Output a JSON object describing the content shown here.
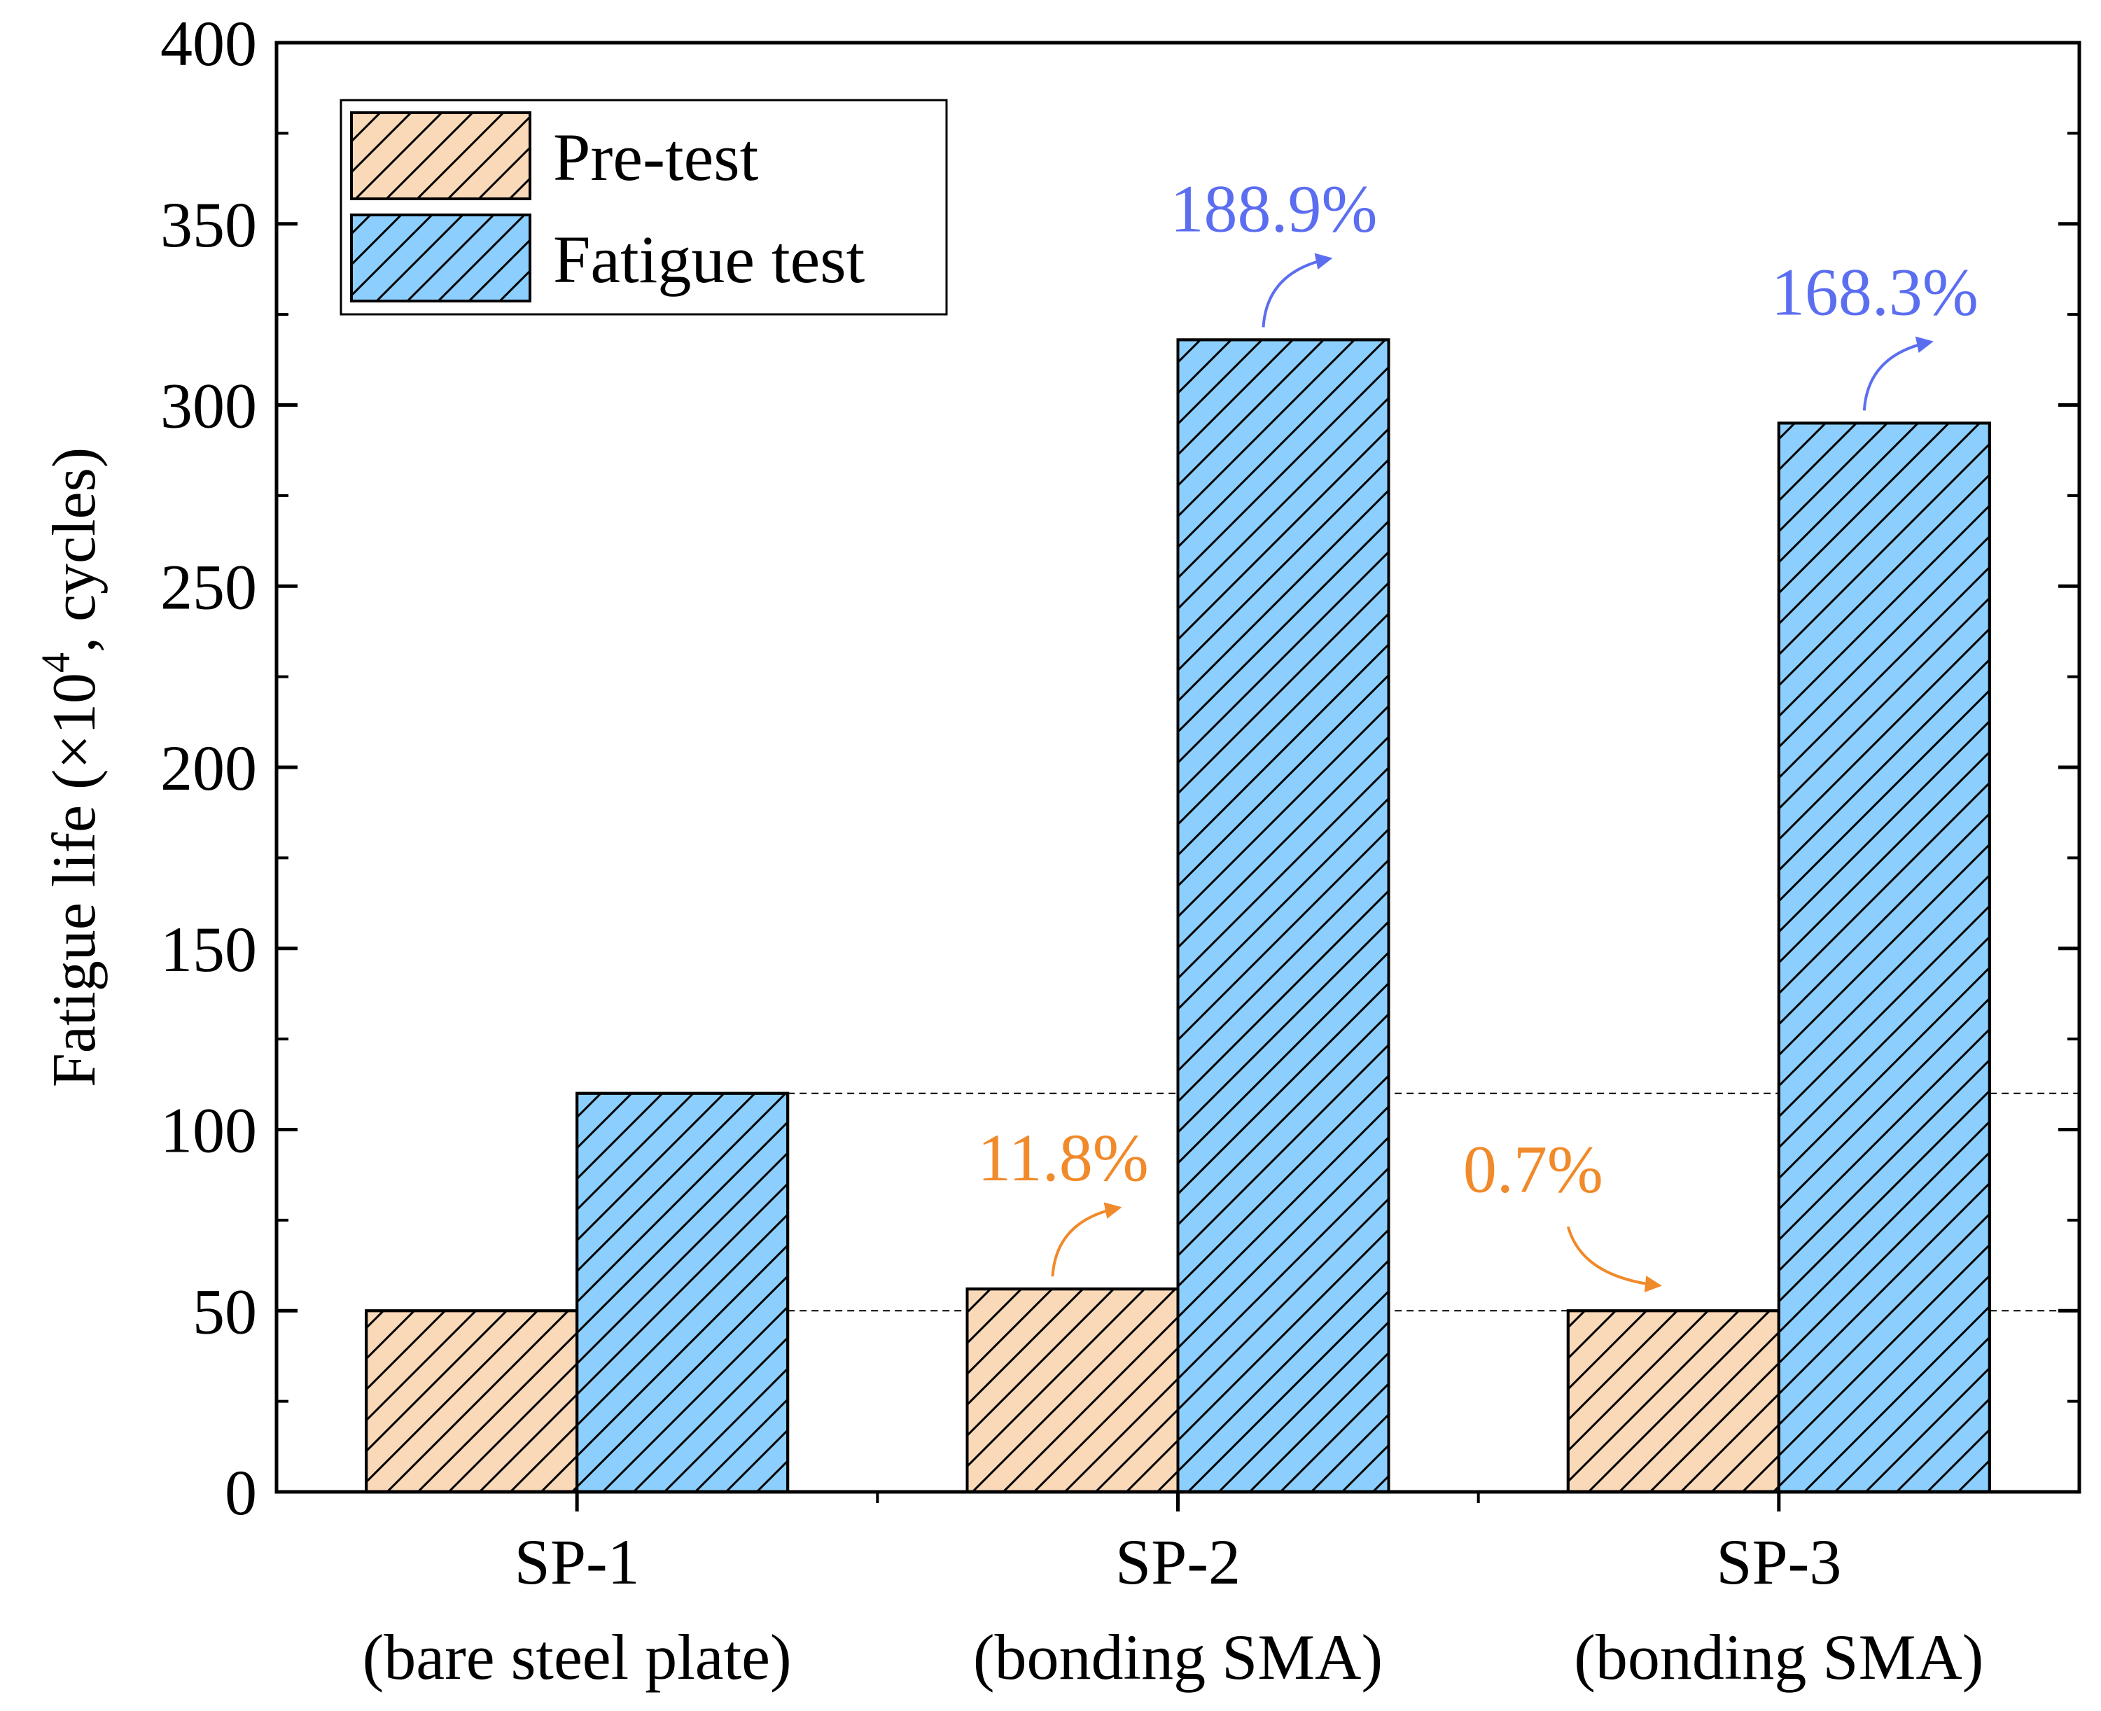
{
  "chart_data": {
    "type": "bar",
    "title": "",
    "xlabel": "",
    "ylabel": {
      "main": "Fatigue life (×10",
      "superscript": "4",
      "tail": ", cycles)"
    },
    "ylim": [
      0,
      400
    ],
    "yticks": [
      "0",
      "50",
      "100",
      "150",
      "200",
      "250",
      "300",
      "350",
      "400"
    ],
    "categories": [
      {
        "name": "SP-1",
        "sub": "(bare steel plate)"
      },
      {
        "name": "SP-2",
        "sub": "(bonding SMA)"
      },
      {
        "name": "SP-3",
        "sub": "(bonding SMA)"
      }
    ],
    "series": [
      {
        "name": "Pre-test",
        "color": "#FAD9B8",
        "values": [
          50,
          56,
          50
        ]
      },
      {
        "name": "Fatigue test",
        "color": "#8CCFFF",
        "values": [
          110,
          318,
          295
        ]
      }
    ],
    "reference_lines": [
      110,
      50
    ],
    "annotations": [
      {
        "text": "11.8%",
        "category": 1,
        "series": 0,
        "color": "#F08A2A"
      },
      {
        "text": "0.7%",
        "category": 2,
        "series": 0,
        "color": "#F08A2A"
      },
      {
        "text": "188.9%",
        "category": 1,
        "series": 1,
        "color": "#5C6EF0"
      },
      {
        "text": "168.3%",
        "category": 2,
        "series": 1,
        "color": "#5C6EF0"
      }
    ],
    "legend_position": "top-left"
  }
}
